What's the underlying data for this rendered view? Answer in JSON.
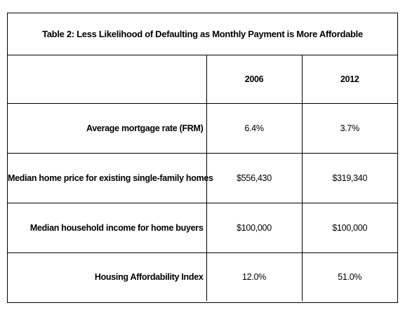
{
  "table": {
    "title": "Table 2: Less Likelihood of Defaulting as Monthly Payment is More Affordable",
    "columns": [
      "",
      "2006",
      "2012"
    ],
    "rows": [
      {
        "label": "Average mortgage rate (FRM)",
        "y2006": "6.4%",
        "y2012": "3.7%"
      },
      {
        "label": "Median home price for existing single-family homes",
        "y2006": "$556,430",
        "y2012": "$319,340"
      },
      {
        "label": "Median household income for home buyers",
        "y2006": "$100,000",
        "y2012": "$100,000"
      },
      {
        "label": "Housing Affordability Index",
        "y2006": "12.0%",
        "y2012": "51.0%"
      }
    ]
  }
}
